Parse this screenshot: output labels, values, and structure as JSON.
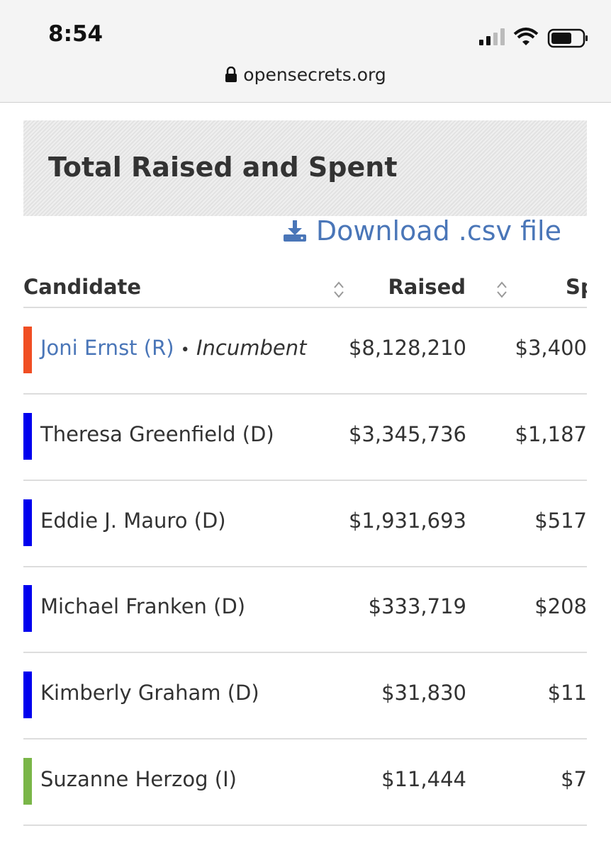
{
  "status_bar": {
    "time": "8:54",
    "url": "opensecrets.org"
  },
  "section": {
    "title": "Total Raised and Spent",
    "download": "Download .csv file"
  },
  "table": {
    "columns": [
      "Candidate",
      "Raised",
      "Sp"
    ],
    "rows": [
      {
        "name": "Joni Ernst (R)",
        "separator": "•",
        "note": "Incumbent",
        "raised": "$8,128,210",
        "spent": "$3,400",
        "color": "#f04e23",
        "link": true
      },
      {
        "name": "Theresa Greenfield (D)",
        "raised": "$3,345,736",
        "spent": "$1,187",
        "color": "#0000ee"
      },
      {
        "name": "Eddie J. Mauro (D)",
        "raised": "$1,931,693",
        "spent": "$517",
        "color": "#0000ee"
      },
      {
        "name": "Michael Franken (D)",
        "raised": "$333,719",
        "spent": "$208",
        "color": "#0000ee"
      },
      {
        "name": "Kimberly Graham (D)",
        "raised": "$31,830",
        "spent": "$11",
        "color": "#0000ee"
      },
      {
        "name": "Suzanne Herzog (I)",
        "raised": "$11,444",
        "spent": "$7",
        "color": "#7ab648"
      }
    ]
  }
}
